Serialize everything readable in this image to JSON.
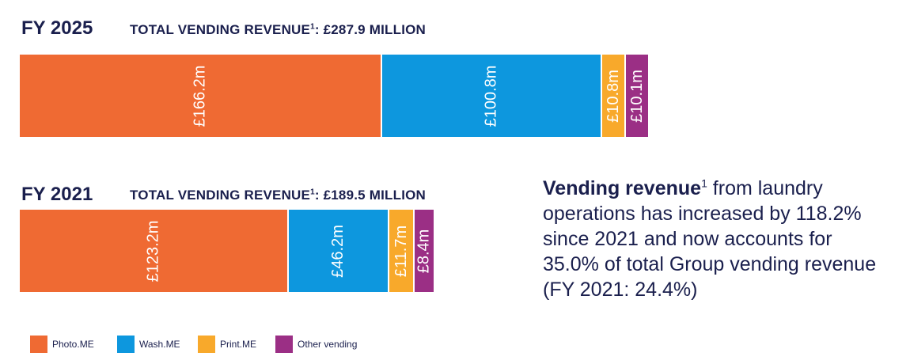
{
  "colors": {
    "photo": "#ef6a33",
    "wash": "#0d97de",
    "print": "#f8a92b",
    "other": "#9b2f85"
  },
  "chart_data": [
    {
      "type": "bar",
      "orientation": "horizontal-stacked",
      "title": "FY 2025",
      "subtitle_text": "TOTAL VENDING REVENUE",
      "subtitle_sup": "1",
      "subtitle_value": ": £287.9 MILLION",
      "total": 287.9,
      "unit": "£m",
      "segments": [
        {
          "name": "Photo.ME",
          "value": 166.2,
          "label": "£166.2m",
          "color": "#ef6a33"
        },
        {
          "name": "Wash.ME",
          "value": 100.8,
          "label": "£100.8m",
          "color": "#0d97de"
        },
        {
          "name": "Print.ME",
          "value": 10.8,
          "label": "£10.8m",
          "color": "#f8a92b"
        },
        {
          "name": "Other vending",
          "value": 10.1,
          "label": "£10.1m",
          "color": "#9b2f85"
        }
      ]
    },
    {
      "type": "bar",
      "orientation": "horizontal-stacked",
      "title": "FY 2021",
      "subtitle_text": "TOTAL VENDING REVENUE",
      "subtitle_sup": "1",
      "subtitle_value": ": £189.5 MILLION",
      "total": 189.5,
      "unit": "£m",
      "segments": [
        {
          "name": "Photo.ME",
          "value": 123.2,
          "label": "£123.2m",
          "color": "#ef6a33"
        },
        {
          "name": "Wash.ME",
          "value": 46.2,
          "label": "£46.2m",
          "color": "#0d97de"
        },
        {
          "name": "Print.ME",
          "value": 11.7,
          "label": "£11.7m",
          "color": "#f8a92b"
        },
        {
          "name": "Other vending",
          "value": 8.4,
          "label": "£8.4m",
          "color": "#9b2f85"
        }
      ]
    }
  ],
  "legend": [
    {
      "label": "Photo.ME",
      "color": "#ef6a33"
    },
    {
      "label": "Wash.ME",
      "color": "#0d97de"
    },
    {
      "label": "Print.ME",
      "color": "#f8a92b"
    },
    {
      "label": "Other vending",
      "color": "#9b2f85"
    }
  ],
  "narrative": {
    "bold": "Vending revenue",
    "sup": "1",
    "rest": " from laundry operations has increased by 118.2% since 2021 and now accounts for 35.0% of total Group vending revenue (FY 2021: 24.4%)"
  }
}
